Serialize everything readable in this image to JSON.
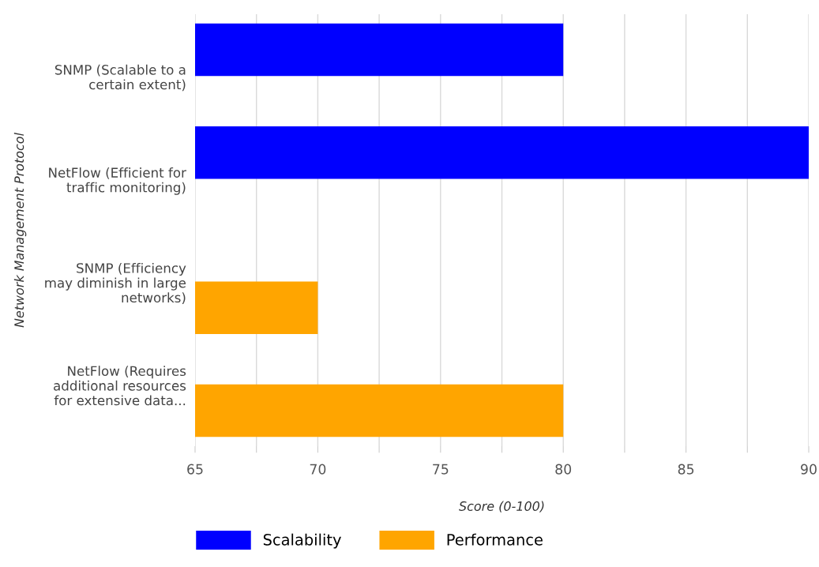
{
  "chart_data": {
    "type": "bar",
    "orientation": "horizontal",
    "categories": [
      "SNMP (Scalable to a\ncertain extent)",
      "NetFlow (Efficient for\ntraffic monitoring)",
      "SNMP (Efficiency\nmay diminish in large\nnetworks)",
      "NetFlow (Requires\nadditional resources\nfor extensive data..."
    ],
    "series": [
      {
        "name": "Scalability",
        "color": "#0000ff",
        "values": [
          80,
          90,
          null,
          null
        ]
      },
      {
        "name": "Performance",
        "color": "#ffa500",
        "values": [
          null,
          null,
          70,
          80
        ]
      }
    ],
    "xlabel": "Score (0-100)",
    "ylabel": "Network Management Protocol",
    "xlim": [
      65,
      90
    ],
    "xticks": [
      65,
      {
        "value": 67.5,
        "label": null
      },
      70,
      {
        "value": 72.5,
        "label": null
      },
      75,
      {
        "value": 77.5,
        "label": null
      },
      80,
      {
        "value": 82.5,
        "label": null
      },
      85,
      {
        "value": 87.5,
        "label": null
      },
      90
    ],
    "grid": "x",
    "legend": "bottom"
  }
}
